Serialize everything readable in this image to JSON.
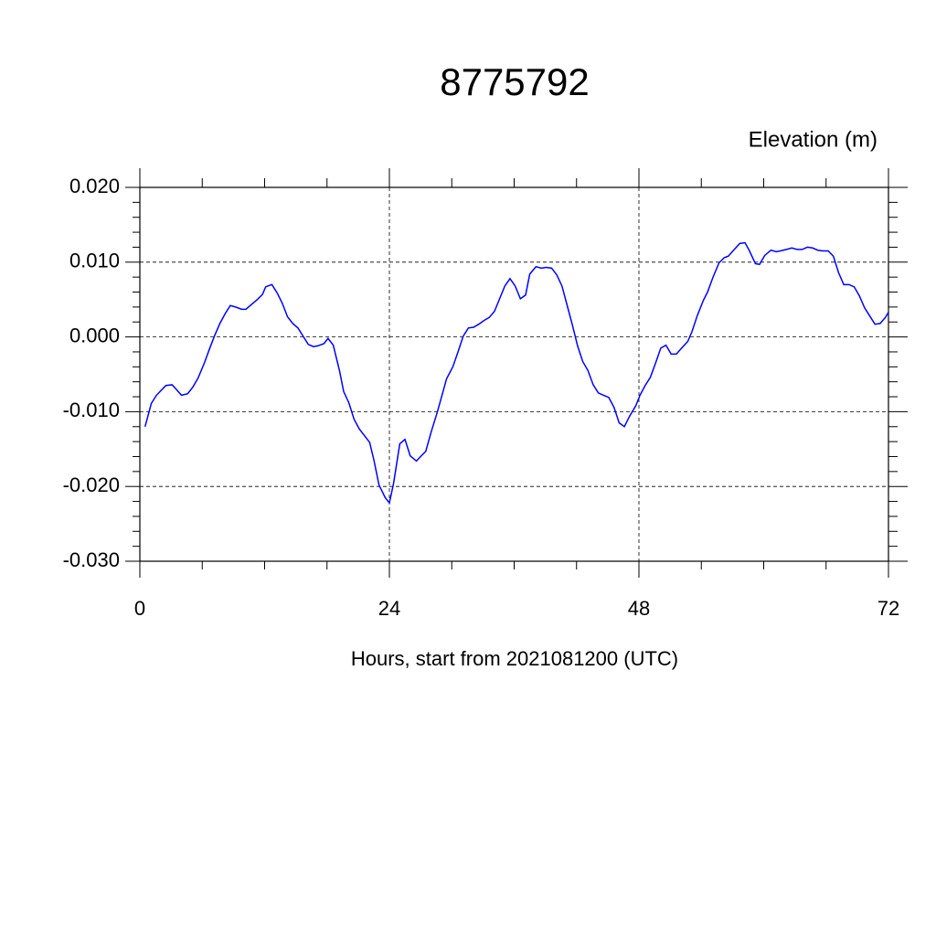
{
  "chart_data": {
    "type": "line",
    "title": "8775792",
    "y_label": "Elevation (m)",
    "x_label": "Hours, start from 2021081200 (UTC)",
    "xlim": [
      0,
      72
    ],
    "xticks": [
      0,
      24,
      48,
      72
    ],
    "xminorticks": [
      6,
      12,
      18,
      30,
      36,
      42,
      54,
      60,
      66
    ],
    "ylim": [
      -0.03,
      0.02
    ],
    "yticks": [
      {
        "value": -0.03,
        "label": "-0.030"
      },
      {
        "value": -0.02,
        "label": "-0.020"
      },
      {
        "value": -0.01,
        "label": "-0.010"
      },
      {
        "value": 0,
        "label": "0.000"
      },
      {
        "value": 0.01,
        "label": "0.010"
      },
      {
        "value": 0.02,
        "label": "0.020"
      }
    ],
    "yminorticks": [
      -0.028,
      -0.026,
      -0.024,
      -0.022,
      -0.018,
      -0.016,
      -0.014,
      -0.012,
      -0.008,
      -0.006,
      -0.004,
      -0.002,
      0.002,
      0.004,
      0.006,
      0.008,
      0.012,
      0.014,
      0.016,
      0.018
    ],
    "grid": true,
    "series": [
      {
        "color": "#0000ff",
        "x": [
          0.5,
          1.1,
          1.6,
          2.5,
          3.1,
          3.5,
          4.0,
          4.6,
          5.1,
          5.6,
          6.2,
          6.7,
          7.2,
          7.7,
          8.2,
          8.7,
          9.2,
          9.8,
          10.2,
          10.7,
          11.3,
          11.8,
          12.1,
          12.7,
          13.2,
          13.7,
          14.2,
          14.7,
          15.2,
          15.7,
          16.2,
          16.7,
          17.1,
          17.7,
          18.1,
          18.6,
          19.2,
          19.6,
          20.1,
          20.6,
          21.1,
          21.6,
          22.1,
          22.5,
          23.0,
          23.6,
          24.0,
          24.4,
          25.0,
          25.5,
          26.0,
          26.6,
          27.0,
          27.5,
          28.0,
          28.6,
          29.1,
          29.5,
          30.1,
          30.6,
          31.1,
          31.6,
          32.1,
          32.6,
          33.1,
          33.6,
          34.1,
          34.6,
          35.1,
          35.6,
          36.1,
          36.6,
          37.1,
          37.5,
          38.1,
          38.6,
          39.1,
          39.6,
          40.1,
          40.6,
          41.1,
          41.6,
          42.1,
          42.6,
          43.1,
          43.6,
          44.1,
          44.6,
          45.1,
          45.6,
          46.1,
          46.6,
          47.1,
          47.7,
          48.1,
          48.6,
          49.1,
          49.6,
          50.1,
          50.6,
          51.1,
          51.6,
          52.1,
          52.7,
          53.1,
          53.6,
          54.2,
          54.6,
          55.1,
          55.7,
          56.2,
          56.6,
          57.1,
          57.7,
          58.2,
          58.6,
          59.2,
          59.6,
          60.1,
          60.7,
          61.2,
          61.6,
          62.2,
          62.7,
          63.2,
          63.7,
          64.2,
          64.7,
          65.2,
          65.7,
          66.2,
          66.7,
          67.2,
          67.7,
          68.2,
          68.7,
          69.2,
          69.7,
          70.2,
          70.7,
          71.2,
          71.7,
          72.0
        ],
        "values": [
          -0.012,
          -0.0089,
          -0.0078,
          -0.0065,
          -0.0064,
          -0.007,
          -0.0078,
          -0.0076,
          -0.0067,
          -0.0055,
          -0.0035,
          -0.0016,
          0.0002,
          0.0018,
          0.0031,
          0.0042,
          0.004,
          0.0037,
          0.0037,
          0.0043,
          0.005,
          0.0057,
          0.0067,
          0.007,
          0.0059,
          0.0045,
          0.0027,
          0.0018,
          0.0012,
          0.0001,
          -0.001,
          -0.0013,
          -0.0012,
          -0.0009,
          -0.0002,
          -0.0011,
          -0.0045,
          -0.0073,
          -0.0088,
          -0.011,
          -0.0123,
          -0.0132,
          -0.0141,
          -0.0164,
          -0.0198,
          -0.0215,
          -0.0222,
          -0.0196,
          -0.0143,
          -0.0137,
          -0.0159,
          -0.0166,
          -0.016,
          -0.0153,
          -0.0128,
          -0.0101,
          -0.0076,
          -0.0056,
          -0.004,
          -0.002,
          0.0001,
          0.0012,
          0.0013,
          0.0017,
          0.0022,
          0.0026,
          0.0034,
          0.0051,
          0.0068,
          0.0078,
          0.0068,
          0.0051,
          0.0056,
          0.0084,
          0.0094,
          0.0092,
          0.0093,
          0.0092,
          0.0083,
          0.0068,
          0.0042,
          0.0016,
          -0.0012,
          -0.0033,
          -0.0045,
          -0.0064,
          -0.0075,
          -0.0078,
          -0.0081,
          -0.0094,
          -0.0115,
          -0.012,
          -0.0106,
          -0.0092,
          -0.0078,
          -0.0065,
          -0.0054,
          -0.0035,
          -0.0015,
          -0.0011,
          -0.0023,
          -0.0023,
          -0.0015,
          -0.0006,
          0.0007,
          0.0028,
          0.0049,
          0.006,
          0.0079,
          0.0099,
          0.0106,
          0.0108,
          0.0116,
          0.0125,
          0.0126,
          0.0116,
          0.0098,
          0.0097,
          0.0109,
          0.0116,
          0.0114,
          0.0115,
          0.0117,
          0.0119,
          0.0117,
          0.0117,
          0.012,
          0.0119,
          0.0116,
          0.0115,
          0.0115,
          0.0108,
          0.0086,
          0.007,
          0.007,
          0.0067,
          0.0055,
          0.0039,
          0.0028,
          0.0017,
          0.0018,
          0.0026,
          0.0033
        ]
      }
    ]
  }
}
